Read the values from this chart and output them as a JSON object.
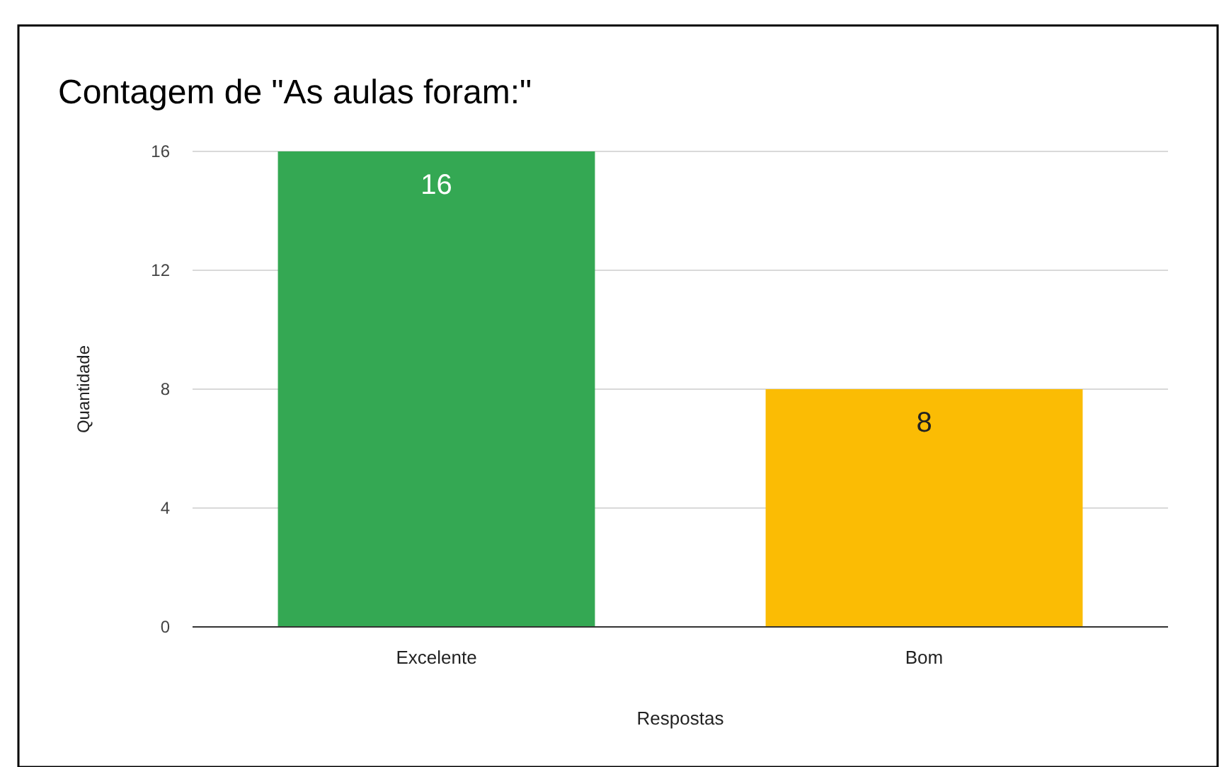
{
  "chart_data": {
    "type": "bar",
    "title": "Contagem de \"As aulas foram:\"",
    "xlabel": "Respostas",
    "ylabel": "Quantidade",
    "categories": [
      "Excelente",
      "Bom"
    ],
    "values": [
      16,
      8
    ],
    "colors": [
      "#34a853",
      "#fbbc04"
    ],
    "ylim": [
      0,
      16
    ],
    "yticks": [
      0,
      4,
      8,
      12,
      16
    ],
    "grid": "y",
    "data_labels": true
  }
}
